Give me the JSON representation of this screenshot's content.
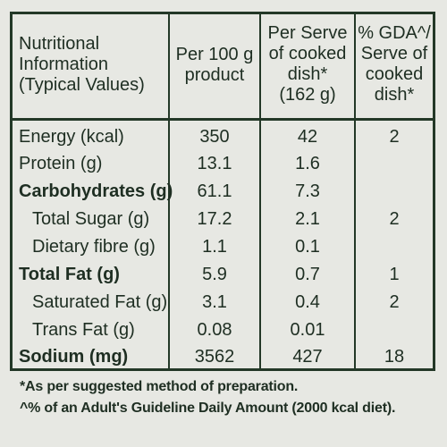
{
  "header": {
    "col1": [
      "Nutritional",
      "Information",
      "(Typical Values)"
    ],
    "col2": [
      "Per 100 g",
      "product"
    ],
    "col3": [
      "Per Serve",
      "of cooked",
      "dish*",
      "(162 g)"
    ],
    "col4": [
      "% GDA^/",
      "Serve of",
      "cooked",
      "dish*"
    ]
  },
  "rows": [
    {
      "label": "Energy (kcal)",
      "per100": "350",
      "perServe": "42",
      "gda": "2"
    },
    {
      "label": "Protein (g)",
      "per100": "13.1",
      "perServe": "1.6",
      "gda": ""
    },
    {
      "label": "Carbohydrates (g)",
      "per100": "61.1",
      "perServe": "7.3",
      "gda": ""
    },
    {
      "label": "Total Sugar (g)",
      "per100": "17.2",
      "perServe": "2.1",
      "gda": "2"
    },
    {
      "label": "Dietary fibre (g)",
      "per100": "1.1",
      "perServe": "0.1",
      "gda": ""
    },
    {
      "label": "Total Fat (g)",
      "per100": "5.9",
      "perServe": "0.7",
      "gda": "1"
    },
    {
      "label": "Saturated Fat (g)",
      "per100": "3.1",
      "perServe": "0.4",
      "gda": "2"
    },
    {
      "label": "Trans Fat (g)",
      "per100": "0.08",
      "perServe": "0.01",
      "gda": ""
    },
    {
      "label": "Sodium (mg)",
      "per100": "3562",
      "perServe": "427",
      "gda": "18"
    }
  ],
  "footnotes": [
    "*As per suggested method of preparation.",
    "^% of an Adult's Guideline Daily Amount (2000 kcal diet)."
  ],
  "colors": {
    "background": "#e7e8e3",
    "ink": "#1e2e22",
    "rule": "#233827"
  }
}
